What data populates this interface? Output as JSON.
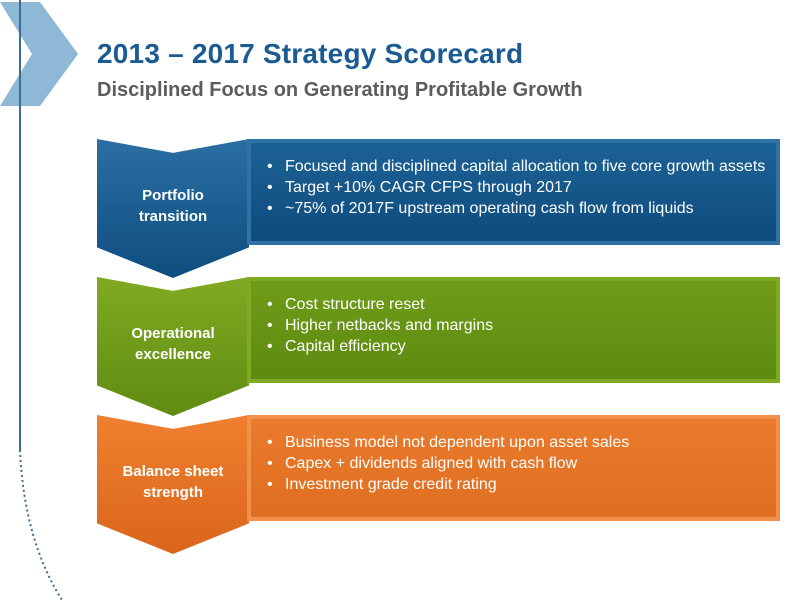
{
  "slide": {
    "title": "2013 – 2017 Strategy Scorecard",
    "subtitle": "Disciplined Focus on Generating Profitable Growth"
  },
  "colors": {
    "title": "#1b5b93",
    "subtitle": "#5c5c5c",
    "portfolio": "#0f4d80",
    "operational": "#5f8c12",
    "balance": "#df6e20",
    "decor_arrow": "#8eb8d6"
  },
  "rows": [
    {
      "label": "Portfolio transition",
      "bullets": [
        "Focused and disciplined capital allocation to five core growth assets",
        "Target +10% CAGR CFPS through 2017",
        "~75% of 2017F upstream operating cash flow from liquids"
      ]
    },
    {
      "label": "Operational excellence",
      "bullets": [
        "Cost structure reset",
        "Higher netbacks and margins",
        "Capital efficiency"
      ]
    },
    {
      "label": "Balance sheet strength",
      "bullets": [
        "Business model not dependent upon asset sales",
        "Capex + dividends aligned with cash flow",
        "Investment grade credit rating"
      ]
    }
  ]
}
